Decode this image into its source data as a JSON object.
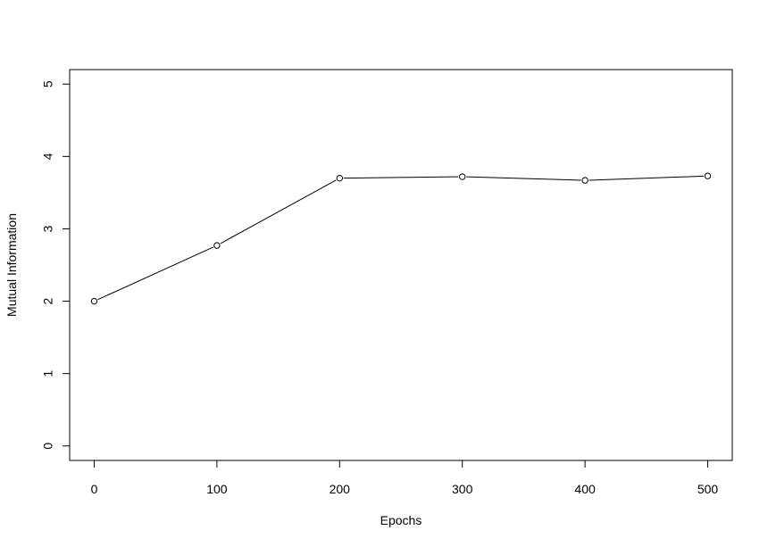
{
  "chart_data": {
    "type": "line",
    "title": "",
    "xlabel": "Epochs",
    "ylabel": "Mutual Information",
    "x": [
      0,
      100,
      200,
      300,
      400,
      500
    ],
    "series": [
      {
        "values": [
          2.0,
          2.77,
          3.7,
          3.72,
          3.67,
          3.73
        ]
      }
    ],
    "xticks": [
      "0",
      "100",
      "200",
      "300",
      "400",
      "500"
    ],
    "yticks": [
      "0",
      "1",
      "2",
      "3",
      "4",
      "5"
    ],
    "xlim": [
      -20,
      520
    ],
    "ylim": [
      -0.2,
      5.2
    ],
    "grid": false,
    "markers": "open-circle",
    "line_color": "#000000"
  }
}
